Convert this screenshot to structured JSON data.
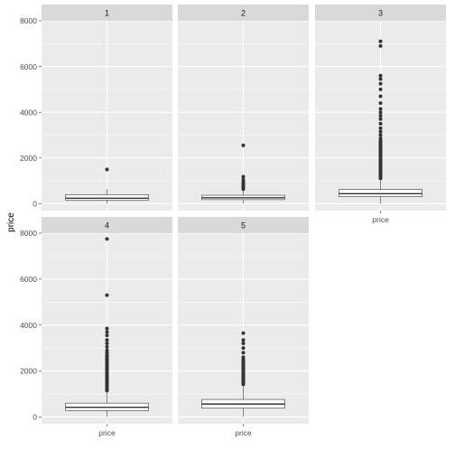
{
  "chart_data": {
    "type": "boxplot",
    "ylabel": "price",
    "x_tick_label": "price",
    "y_ticks": [
      0,
      2000,
      4000,
      6000,
      8000
    ],
    "ylim": [
      -300,
      8000
    ],
    "facet_layout": "3 columns x 2 rows",
    "panel_background": "#EBEBEB",
    "strip_background": "#D9D9D9",
    "grid": true,
    "facets": [
      {
        "label": "1",
        "box": {
          "lower_whisker": 0,
          "q1": 160,
          "median": 240,
          "q3": 400,
          "upper_whisker": 640
        },
        "outliers": [
          1500
        ]
      },
      {
        "label": "2",
        "box": {
          "lower_whisker": 0,
          "q1": 180,
          "median": 260,
          "q3": 370,
          "upper_whisker": 600
        },
        "outliers": [
          640,
          680,
          720,
          760,
          800,
          850,
          900,
          950,
          1050,
          1180,
          2550
        ]
      },
      {
        "label": "3",
        "box": {
          "lower_whisker": 0,
          "q1": 310,
          "median": 440,
          "q3": 620,
          "upper_whisker": 1080
        },
        "outliers": [
          1110,
          1160,
          1200,
          1250,
          1300,
          1350,
          1400,
          1450,
          1500,
          1550,
          1600,
          1650,
          1700,
          1750,
          1800,
          1850,
          1900,
          1950,
          2000,
          2050,
          2100,
          2150,
          2200,
          2250,
          2300,
          2350,
          2400,
          2450,
          2500,
          2550,
          2600,
          2650,
          2700,
          2750,
          2850,
          3000,
          3150,
          3300,
          3500,
          3700,
          3850,
          4000,
          4150,
          4400,
          4700,
          5000,
          5250,
          5450,
          5600,
          6900,
          7100
        ]
      },
      {
        "label": "4",
        "box": {
          "lower_whisker": 0,
          "q1": 280,
          "median": 420,
          "q3": 600,
          "upper_whisker": 1100
        },
        "outliers": [
          1150,
          1200,
          1250,
          1300,
          1350,
          1400,
          1450,
          1500,
          1550,
          1600,
          1650,
          1700,
          1750,
          1800,
          1850,
          1900,
          1950,
          2000,
          2050,
          2100,
          2150,
          2200,
          2250,
          2300,
          2350,
          2400,
          2450,
          2500,
          2550,
          2600,
          2650,
          2700,
          2800,
          2900,
          3050,
          3200,
          3350,
          3550,
          3700,
          3850,
          5300,
          7750
        ]
      },
      {
        "label": "5",
        "box": {
          "lower_whisker": 0,
          "q1": 380,
          "median": 560,
          "q3": 760,
          "upper_whisker": 1380
        },
        "outliers": [
          1420,
          1460,
          1500,
          1550,
          1600,
          1650,
          1700,
          1750,
          1800,
          1850,
          1900,
          1950,
          2000,
          2050,
          2100,
          2150,
          2200,
          2250,
          2300,
          2350,
          2400,
          2450,
          2500,
          2600,
          2800,
          3000,
          3200,
          3350,
          3650
        ]
      }
    ]
  }
}
